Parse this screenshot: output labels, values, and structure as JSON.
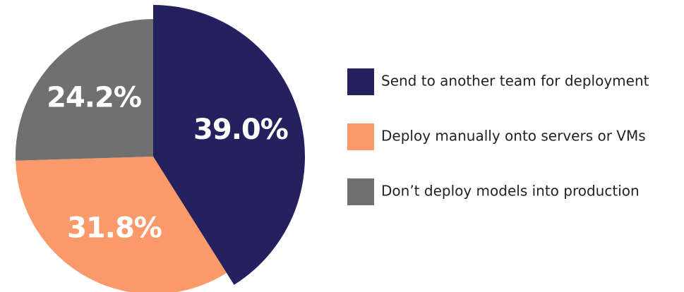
{
  "chart_data": {
    "type": "pie",
    "categories": [
      "Send to another team for deployment",
      "Deploy manually onto servers or VMs",
      "Don’t deploy models into production"
    ],
    "values": [
      39,
      31.8,
      24.2
    ],
    "value_labels": [
      "39.0%",
      "31.8%",
      "24.2%"
    ],
    "colors": [
      "#25215e",
      "#fa9a6a",
      "#707070"
    ],
    "legend": "right"
  }
}
